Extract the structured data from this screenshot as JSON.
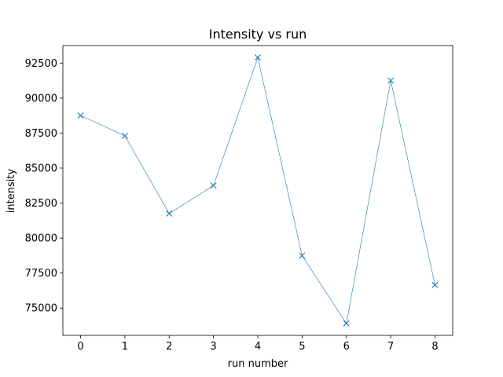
{
  "chart_data": {
    "type": "line",
    "title": "Intensity vs run",
    "xlabel": "run number",
    "ylabel": "intensity",
    "x": [
      0,
      1,
      2,
      3,
      4,
      5,
      6,
      7,
      8
    ],
    "series": [
      {
        "values": [
          88750,
          87300,
          81750,
          83750,
          92900,
          78750,
          73900,
          91250,
          76650
        ],
        "color": "#1f77b4",
        "marker": "x"
      }
    ],
    "xlim": [
      -0.4,
      8.4
    ],
    "ylim": [
      73050,
      93750
    ],
    "xticks": [
      0,
      1,
      2,
      3,
      4,
      5,
      6,
      7,
      8
    ],
    "yticks": [
      75000,
      77500,
      80000,
      82500,
      85000,
      87500,
      90000,
      92500
    ],
    "xtick_labels": [
      "0",
      "1",
      "2",
      "3",
      "4",
      "5",
      "6",
      "7",
      "8"
    ],
    "ytick_labels": [
      "75000",
      "77500",
      "80000",
      "82500",
      "85000",
      "87500",
      "90000",
      "92500"
    ],
    "grid": false,
    "legend": "none"
  }
}
